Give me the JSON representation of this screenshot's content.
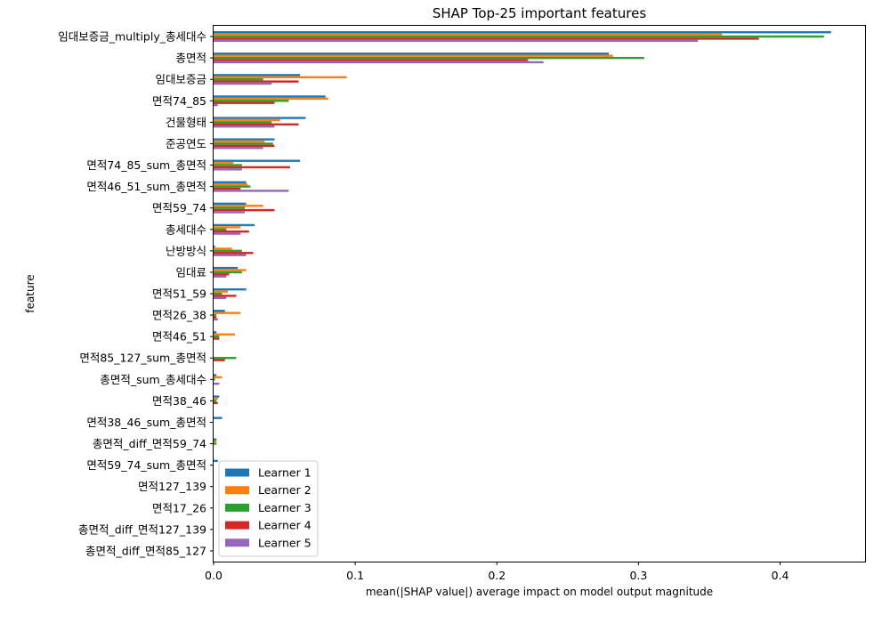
{
  "chart_data": {
    "type": "bar",
    "orientation": "horizontal",
    "title": "SHAP Top-25 important features",
    "xlabel": "mean(|SHAP value|) average impact on model output magnitude",
    "ylabel": "feature",
    "xlim": [
      0,
      0.46
    ],
    "xticks": [
      0.0,
      0.1,
      0.2,
      0.3,
      0.4
    ],
    "xtick_labels": [
      "0.0",
      "0.1",
      "0.2",
      "0.3",
      "0.4"
    ],
    "grid": false,
    "legend_position": "lower-left",
    "categories": [
      "임대보증금_multiply_총세대수",
      "총면적",
      "임대보증금",
      "면적74_85",
      "건물형태",
      "준공연도",
      "면적74_85_sum_총면적",
      "면적46_51_sum_총면적",
      "면적59_74",
      "총세대수",
      "난방방식",
      "임대료",
      "면적51_59",
      "면적26_38",
      "면적46_51",
      "면적85_127_sum_총면적",
      "총면적_sum_총세대수",
      "면적38_46",
      "면적38_46_sum_총면적",
      "총면적_diff_면적59_74",
      "면적59_74_sum_총면적",
      "면적127_139",
      "면적17_26",
      "총면적_diff_면적127_139",
      "총면적_diff_면적85_127"
    ],
    "series": [
      {
        "name": "Learner 1",
        "color": "#1f77b4",
        "values": [
          0.436,
          0.279,
          0.061,
          0.079,
          0.065,
          0.043,
          0.061,
          0.023,
          0.023,
          0.029,
          0.001,
          0.017,
          0.023,
          0.008,
          0.002,
          0.0,
          0.002,
          0.004,
          0.006,
          0.002,
          0.003,
          0.0,
          0.0,
          0.0,
          0.0
        ]
      },
      {
        "name": "Learner 2",
        "color": "#ff7f0e",
        "values": [
          0.359,
          0.282,
          0.094,
          0.081,
          0.047,
          0.036,
          0.014,
          0.024,
          0.035,
          0.019,
          0.013,
          0.023,
          0.01,
          0.019,
          0.015,
          0.0,
          0.006,
          0.003,
          0.0,
          0.002,
          0.0,
          0.0,
          0.0,
          0.0,
          0.0
        ]
      },
      {
        "name": "Learner 3",
        "color": "#2ca02c",
        "values": [
          0.431,
          0.304,
          0.035,
          0.053,
          0.041,
          0.042,
          0.02,
          0.026,
          0.022,
          0.009,
          0.02,
          0.02,
          0.006,
          0.002,
          0.004,
          0.016,
          0.001,
          0.002,
          0.0,
          0.002,
          0.0,
          0.0,
          0.0,
          0.0,
          0.0
        ]
      },
      {
        "name": "Learner 4",
        "color": "#d62728",
        "values": [
          0.385,
          0.222,
          0.06,
          0.043,
          0.06,
          0.043,
          0.054,
          0.019,
          0.043,
          0.025,
          0.028,
          0.011,
          0.016,
          0.002,
          0.004,
          0.008,
          0.0,
          0.003,
          0.0,
          0.0,
          0.0,
          0.0,
          0.0,
          0.0,
          0.0
        ]
      },
      {
        "name": "Learner 5",
        "color": "#9467bd",
        "values": [
          0.342,
          0.233,
          0.041,
          0.003,
          0.043,
          0.035,
          0.02,
          0.053,
          0.022,
          0.019,
          0.023,
          0.009,
          0.009,
          0.003,
          0.0,
          0.0,
          0.004,
          0.0,
          0.0,
          0.0,
          0.0,
          0.0,
          0.0,
          0.0,
          0.0
        ]
      }
    ]
  }
}
